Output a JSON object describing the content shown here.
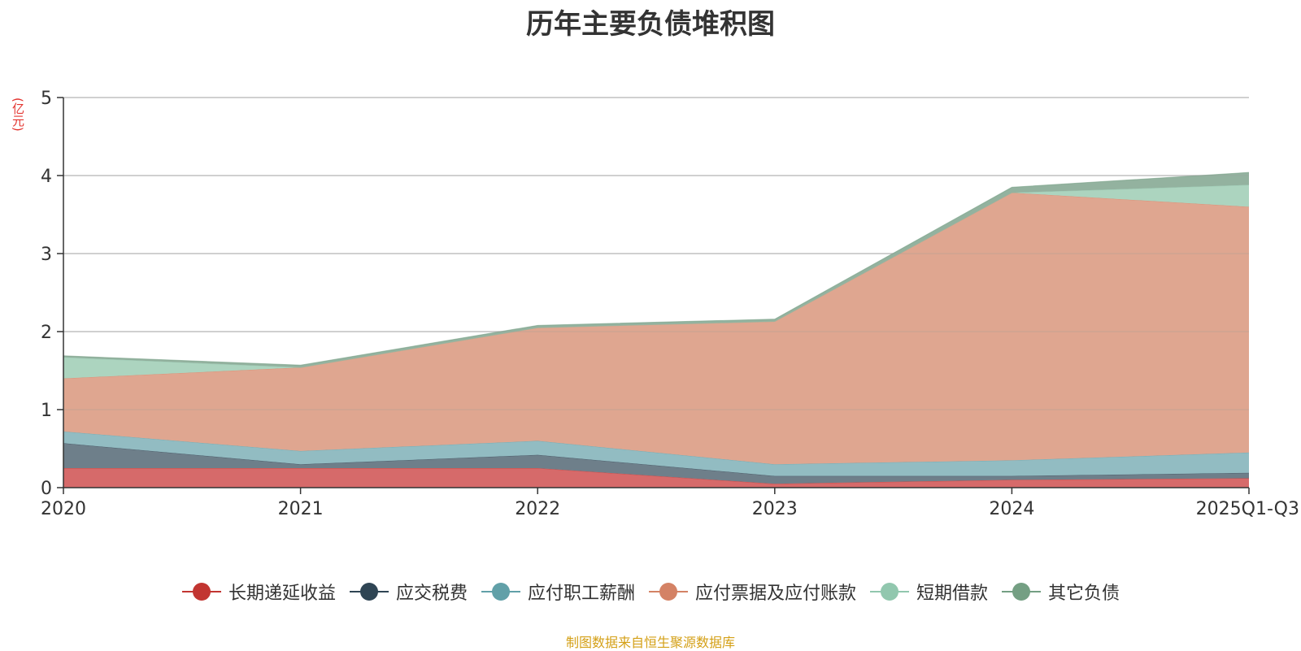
{
  "chart_data": {
    "type": "area",
    "stacked": true,
    "title": "历年主要负债堆积图",
    "unit_label": "(亿元)",
    "xlabel": "",
    "ylabel": "(亿元)",
    "categories": [
      "2020",
      "2021",
      "2022",
      "2023",
      "2024",
      "2025Q1-Q3"
    ],
    "ylim": [
      0,
      5
    ],
    "yticks": [
      0,
      1,
      2,
      3,
      4,
      5
    ],
    "grid": true,
    "legend_position": "bottom",
    "series": [
      {
        "name": "长期递延收益",
        "color": "#c23531",
        "fill": "#d66a6a",
        "values": [
          0.25,
          0.25,
          0.25,
          0.05,
          0.1,
          0.12
        ]
      },
      {
        "name": "应交税费",
        "color": "#2f4554",
        "fill": "#6e7f8a",
        "values": [
          0.32,
          0.05,
          0.17,
          0.1,
          0.05,
          0.07
        ]
      },
      {
        "name": "应付职工薪酬",
        "color": "#61a0a8",
        "fill": "#92bcc2",
        "values": [
          0.15,
          0.17,
          0.18,
          0.15,
          0.2,
          0.26
        ]
      },
      {
        "name": "应付票据及应付账款",
        "color": "#d48265",
        "fill": "#dfa690",
        "values": [
          0.68,
          1.07,
          1.45,
          1.83,
          3.43,
          3.15
        ]
      },
      {
        "name": "短期借款",
        "color": "#91c7ae",
        "fill": "#acd4bf",
        "values": [
          0.27,
          0.0,
          0.0,
          0.0,
          0.0,
          0.28
        ]
      },
      {
        "name": "其它负债",
        "color": "#749f83",
        "fill": "#93b29f",
        "values": [
          0.02,
          0.03,
          0.03,
          0.03,
          0.07,
          0.16
        ]
      }
    ]
  },
  "footer": {
    "source": "制图数据来自恒生聚源数据库"
  }
}
